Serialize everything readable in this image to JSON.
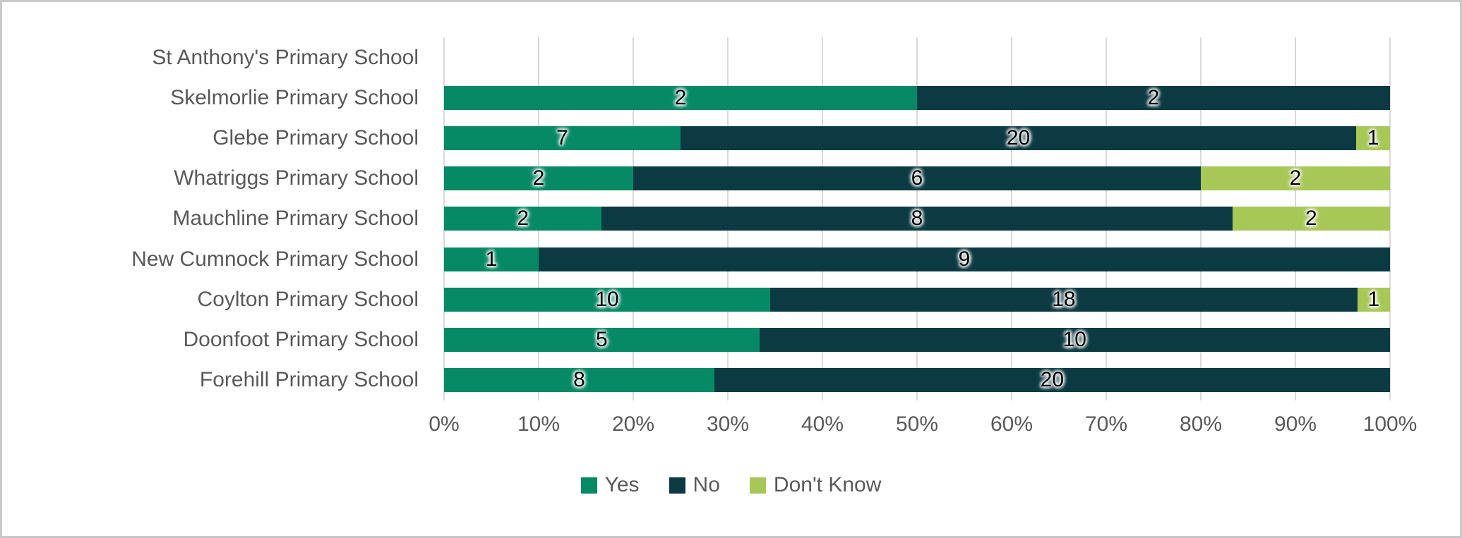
{
  "chart_data": {
    "type": "bar",
    "subtype": "horizontal-stacked-100",
    "title": "",
    "xlabel": "",
    "ylabel": "",
    "grid": true,
    "legend_position": "bottom",
    "xlim": [
      0,
      100
    ],
    "x_ticks": [
      "0%",
      "10%",
      "20%",
      "30%",
      "40%",
      "50%",
      "60%",
      "70%",
      "80%",
      "90%",
      "100%"
    ],
    "categories": [
      "St Anthony's Primary School",
      "Skelmorlie Primary School",
      "Glebe Primary School",
      "Whatriggs Primary School",
      "Mauchline Primary School",
      "New Cumnock Primary School",
      "Coylton Primary School",
      "Doonfoot Primary School",
      "Forehill Primary School"
    ],
    "series": [
      {
        "name": "Yes",
        "color": "#068A66",
        "values": [
          0,
          2,
          7,
          2,
          2,
          1,
          10,
          5,
          8
        ]
      },
      {
        "name": "No",
        "color": "#0B3A43",
        "values": [
          0,
          2,
          20,
          6,
          8,
          9,
          18,
          10,
          20
        ]
      },
      {
        "name": "Don't Know",
        "color": "#A7C857",
        "values": [
          0,
          0,
          1,
          2,
          2,
          0,
          1,
          0,
          0
        ]
      }
    ]
  },
  "colors": {
    "background": "#FFFFFF",
    "frame_border": "#C9C9C9",
    "gridline": "#D9D9D9",
    "axis_text": "#595959",
    "data_label": "#000000"
  }
}
